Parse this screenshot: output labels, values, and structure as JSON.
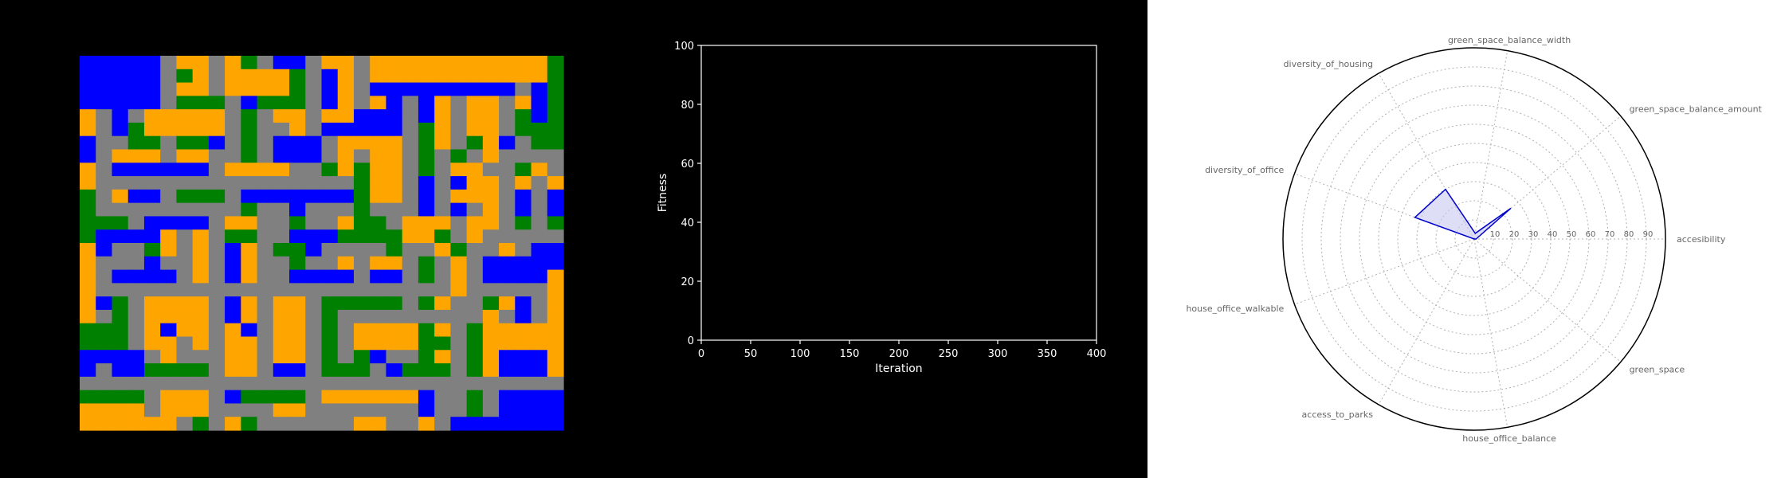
{
  "colors": {
    "background": "#000000",
    "road": "#808080",
    "housing": "#0000ff",
    "office": "#ffa500",
    "green": "#008000",
    "radar": "#0000cd",
    "radar_fill": "#c8c8f0"
  },
  "chart_data": [
    {
      "type": "heatmap",
      "title": "",
      "legend_map": {
        "0": "road",
        "1": "housing",
        "2": "office",
        "3": "green"
      },
      "rows": [
        "111110220230110220222222222223",
        "111110320222230120222222222223",
        "111110220222230120111111111013",
        "111110333013330120210120220213",
        "201022222030220221110120220313",
        "201322222030020111110320220333",
        "100330331030111022220320321033",
        "102220220030111020220303020000",
        "201111110222200323220302200320",
        "200000000000000003220101220202",
        "302110333011111113220102220101",
        "300000000030010003000101020101",
        "333011110220030023302220220303",
        "311112020330011133332230200000",
        "210032020120331000030023002011",
        "200010020120030020220302011111",
        "201111020120011110110302011112",
        "200000000000000000000002000002",
        "213022220120220333330320032102",
        "203022220120220300000000020102",
        "333021220210220302222320322222",
        "333022020220220302222330322222",
        "111102000220220303100320321112",
        "101133330220110333013330321112",
        "000000000000000000000000000000",
        "333302220133330222222100301111",
        "222202220000220000000100301111",
        "222222030230000002200201111111"
      ]
    },
    {
      "type": "line",
      "title": "",
      "xlabel": "Iteration",
      "ylabel": "Fitness",
      "xlim": [
        0,
        400
      ],
      "ylim": [
        0,
        100
      ],
      "xticks": [
        0,
        50,
        100,
        150,
        200,
        250,
        300,
        350,
        400
      ],
      "yticks": [
        0,
        20,
        40,
        60,
        80,
        100
      ],
      "series": []
    },
    {
      "type": "radar",
      "title": "",
      "rlim": [
        0,
        100
      ],
      "rticks": [
        10,
        20,
        30,
        40,
        50,
        60,
        70,
        80,
        90
      ],
      "categories": [
        "accesibility",
        "green_space_balance_amount",
        "green_space_balance_width",
        "diversity_of_housing",
        "diversity_of_office",
        "house_office_walkable",
        "access_to_parks",
        "house_office_balance",
        "green_space"
      ],
      "values": [
        1,
        25,
        3,
        30,
        33,
        0,
        0,
        0,
        0
      ]
    }
  ]
}
